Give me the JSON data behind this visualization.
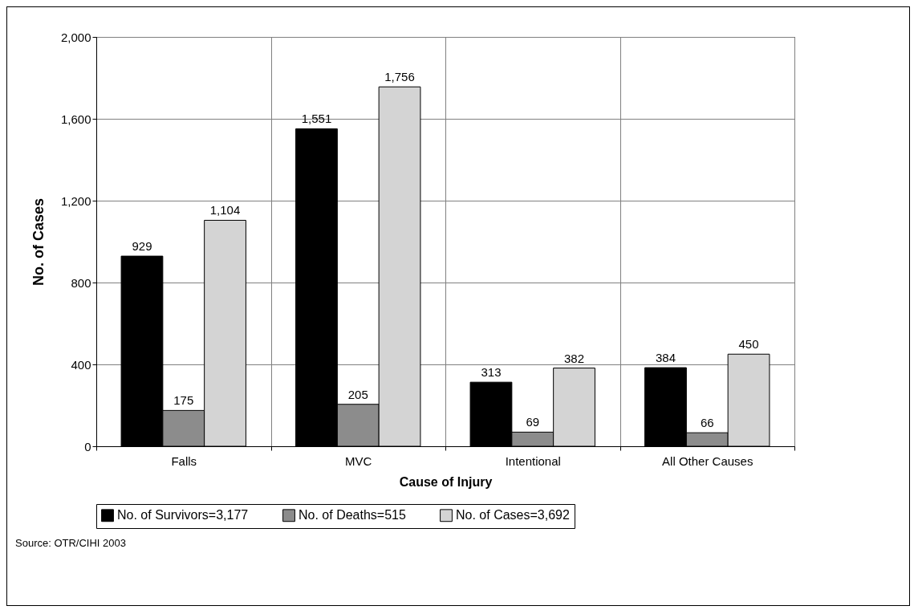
{
  "chart_data": {
    "type": "bar",
    "xlabel": "Cause of Injury",
    "ylabel": "No. of Cases",
    "categories": [
      "Falls",
      "MVC",
      "Intentional",
      "All Other Causes"
    ],
    "series": [
      {
        "name": "No. of Survivors=3,177",
        "color": "#000000",
        "values": [
          929,
          1551,
          313,
          384
        ],
        "value_labels": [
          "929",
          "1,551",
          "313",
          "384"
        ]
      },
      {
        "name": "No. of Deaths=515",
        "color": "#8c8c8c",
        "values": [
          175,
          205,
          69,
          66
        ],
        "value_labels": [
          "175",
          "205",
          "69",
          "66"
        ]
      },
      {
        "name": "No. of Cases=3,692",
        "color": "#d4d4d4",
        "values": [
          1104,
          1756,
          382,
          450
        ],
        "value_labels": [
          "1,104",
          "1,756",
          "382",
          "450"
        ]
      }
    ],
    "ylim": [
      0,
      2000
    ],
    "yticks": [
      {
        "value": 0,
        "label": "0"
      },
      {
        "value": 400,
        "label": "400"
      },
      {
        "value": 800,
        "label": "800"
      },
      {
        "value": 1200,
        "label": "1,200"
      },
      {
        "value": 1600,
        "label": "1,600"
      },
      {
        "value": 2000,
        "label": "2,000"
      }
    ],
    "grid": true,
    "legend": "bottom",
    "annotations": [
      "Source: OTR/CIHI 2003"
    ]
  }
}
